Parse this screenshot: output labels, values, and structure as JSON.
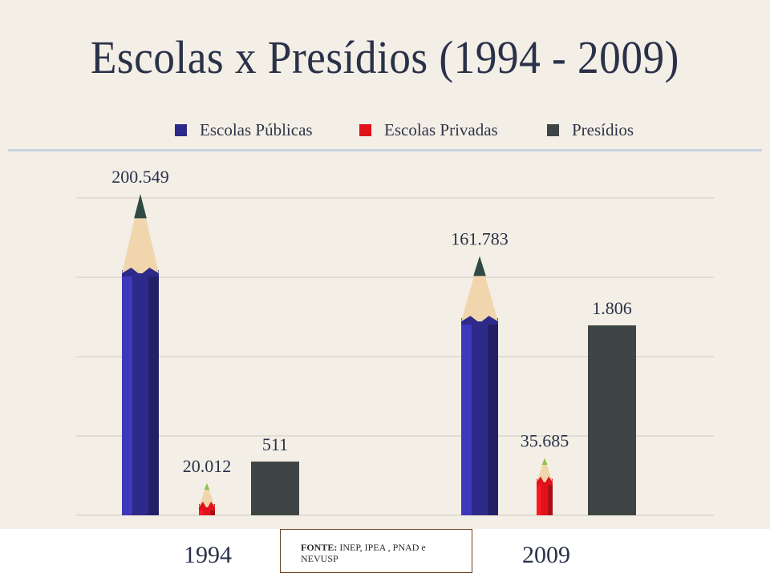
{
  "title": "Escolas x Presídios (1994 - 2009)",
  "legend": [
    {
      "label": "Escolas Públicas",
      "color": "#2e2a8a"
    },
    {
      "label": "Escolas Privadas",
      "color": "#e0121a"
    },
    {
      "label": "Presídios",
      "color": "#3e4645"
    }
  ],
  "source": {
    "prefix": "FONTE:",
    "text": "INEP, IPEA , PNAD e NEVUSP"
  },
  "chart_data": {
    "type": "bar",
    "title": "Escolas x Presídios (1994 - 2009)",
    "categories": [
      "1994",
      "2009"
    ],
    "series": [
      {
        "name": "Escolas Públicas",
        "values": [
          200549,
          161783
        ],
        "labels": [
          "200.549",
          "161.783"
        ],
        "color": "#2e2a8a",
        "shape": "pencil"
      },
      {
        "name": "Escolas Privadas",
        "values": [
          20012,
          35685
        ],
        "labels": [
          "20.012",
          "35.685"
        ],
        "color": "#e0121a",
        "shape": "pencil"
      },
      {
        "name": "Presídios",
        "values": [
          511,
          1806
        ],
        "labels": [
          "511",
          "1.806"
        ],
        "color": "#3e4645",
        "shape": "block"
      }
    ],
    "grid": true,
    "legend_position": "top",
    "xlabel": "",
    "ylabel": ""
  }
}
